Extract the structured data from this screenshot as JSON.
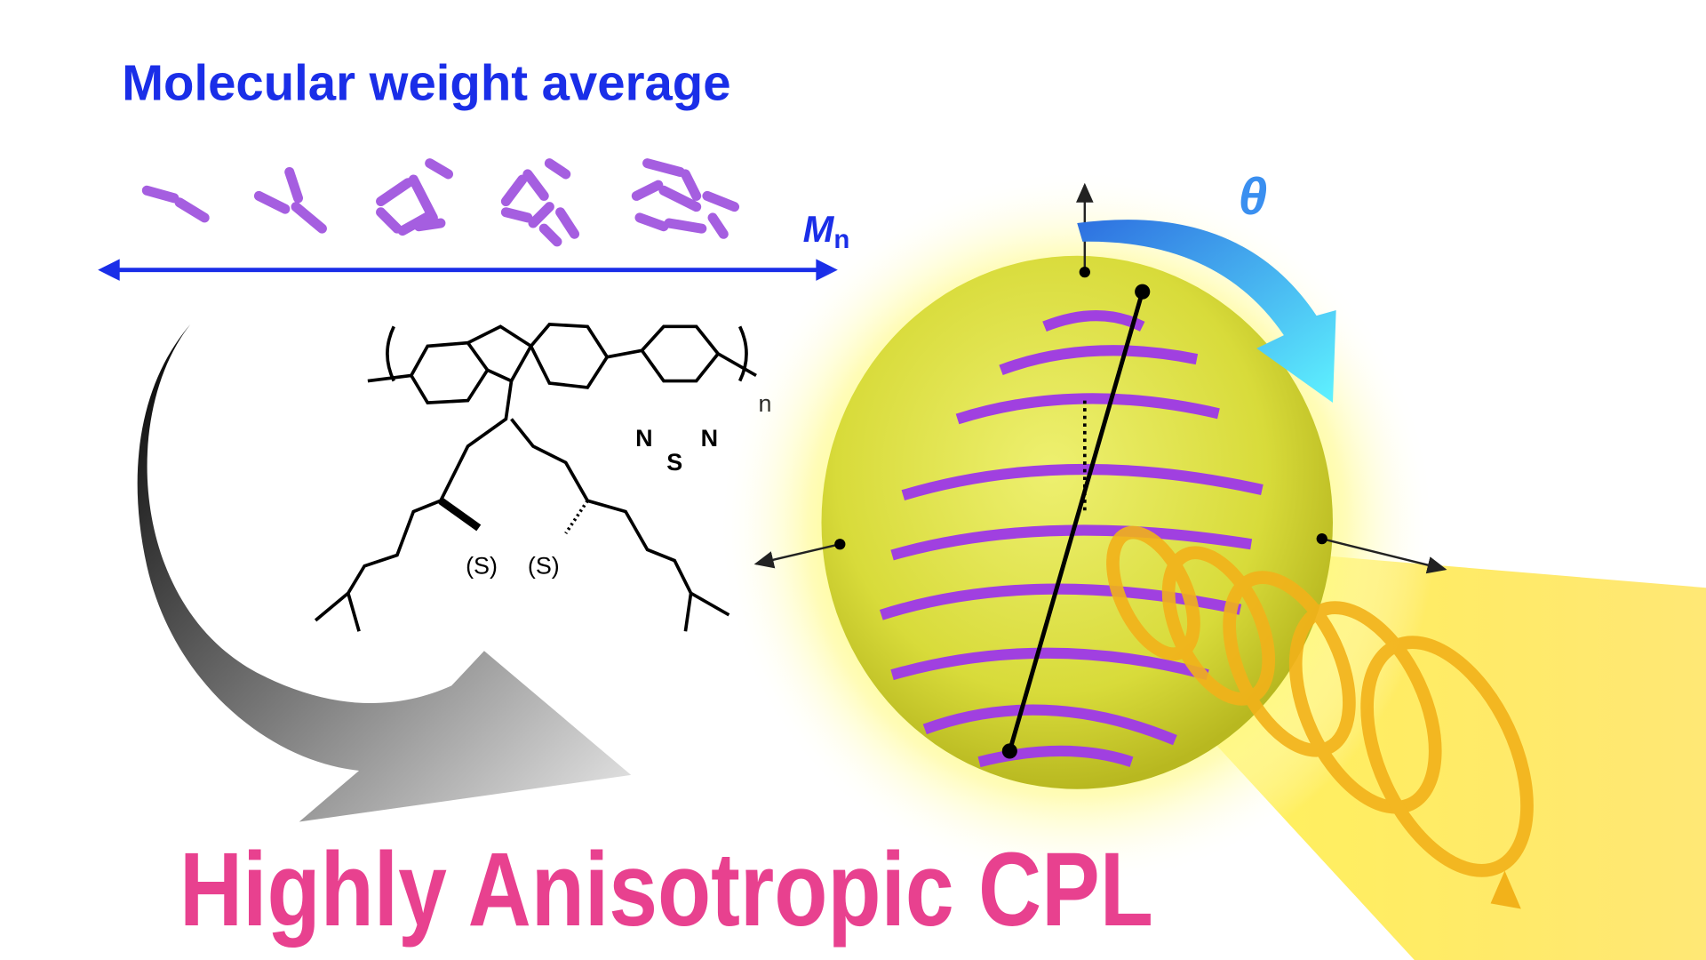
{
  "title": "Molecular weight average",
  "axis_label": {
    "main": "M",
    "subscript": "n"
  },
  "angle_label": "θ",
  "chemical_structure": {
    "atoms": [
      "N",
      "S",
      "N"
    ],
    "repeat": "n",
    "stereo": [
      "(S)",
      "(S)"
    ]
  },
  "headline": "Highly Anisotropic CPL"
}
